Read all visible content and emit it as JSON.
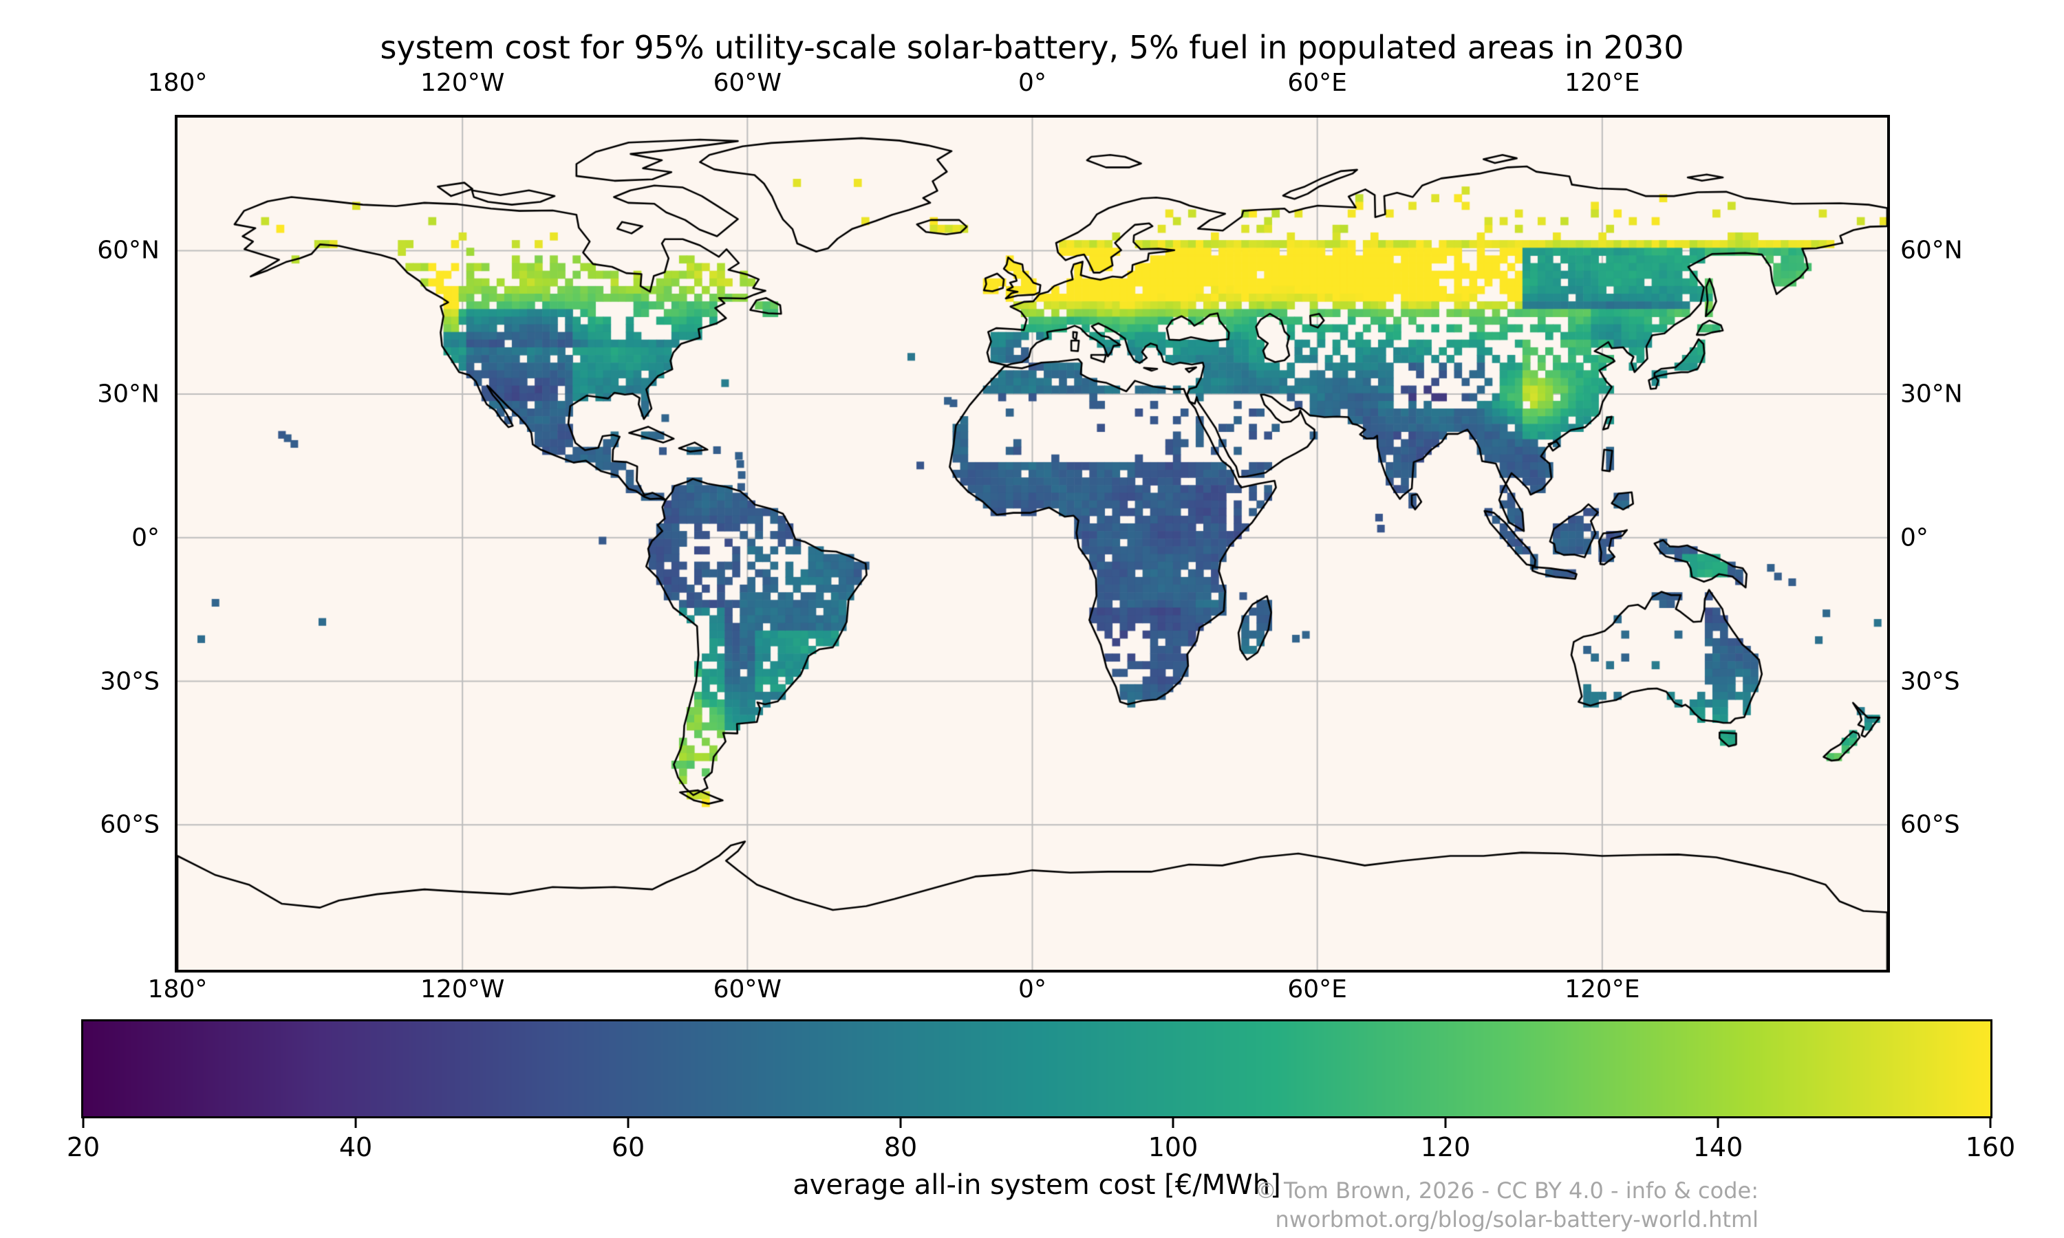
{
  "title": "system cost for 95% utility-scale solar-battery, 5% fuel in populated areas in 2030",
  "map": {
    "projection": "PlateCarree (equirectangular)",
    "extent": {
      "lon_min": -180,
      "lon_max": 180,
      "lat_min": -90,
      "lat_max": 87.8
    },
    "background_color": "#fdf6f0",
    "grid_color": "#bdbdbd",
    "coastline_color": "#000000",
    "no_data_meaning": "white cells = unpopulated areas (no data)",
    "lon_ticks": [
      {
        "label": "180°",
        "lon": -180
      },
      {
        "label": "120°W",
        "lon": -120
      },
      {
        "label": "60°W",
        "lon": -60
      },
      {
        "label": "0°",
        "lon": 0
      },
      {
        "label": "60°E",
        "lon": 60
      },
      {
        "label": "120°E",
        "lon": 120
      }
    ],
    "lat_ticks": [
      {
        "label": "60°N",
        "lat": 60
      },
      {
        "label": "30°N",
        "lat": 30
      },
      {
        "label": "0°",
        "lat": 0
      },
      {
        "label": "30°S",
        "lat": -30
      },
      {
        "label": "60°S",
        "lat": -60
      }
    ]
  },
  "colorbar": {
    "label": "average all-in system cost [€/MWh]",
    "min": 20,
    "max": 160,
    "ticks": [
      20,
      40,
      60,
      80,
      100,
      120,
      140,
      160
    ],
    "colormap": "viridis"
  },
  "attribution": {
    "line1": "© Tom Brown, 2026 - CC BY 4.0 - info & code:",
    "line2": "nworbmot.org/blog/solar-battery-world.html",
    "color": "#a6a6a6"
  },
  "chart_data": {
    "type": "heatmap",
    "subtype": "geographic pcolormesh on world map, ~1.6° cells over populated land only",
    "value_units": "€/MWh",
    "value_range": [
      20,
      160
    ],
    "colormap": "viridis",
    "legend_position": "horizontal colorbar below map",
    "grid": "gray graticule every 60° lon / 30° lat",
    "regions": [
      {
        "region": "UK & Ireland",
        "approx_cost": "150-160"
      },
      {
        "region": "Northern/Central Europe & western Russia (49-62°N)",
        "approx_cost": "140-160"
      },
      {
        "region": "Central Europe fringe (45-49°N)",
        "approx_cost": "105-140"
      },
      {
        "region": "Mediterranean Europe, Balkans & Turkey",
        "approx_cost": "75-105"
      },
      {
        "region": "Iberia interior",
        "approx_cost": "75-95"
      },
      {
        "region": "North Africa coast & Middle East",
        "approx_cost": "55-75"
      },
      {
        "region": "Sahara, Arabian, Taklamakan & central-Australian deserts",
        "approx_cost": "no data; isolated cells 55-65"
      },
      {
        "region": "Tropical Africa & Sahel",
        "approx_cost": "50-65"
      },
      {
        "region": "Southern Africa & Madagascar",
        "approx_cost": "55-75"
      },
      {
        "region": "India",
        "approx_cost": "60-75"
      },
      {
        "region": "Southeast Asia & Indonesia",
        "approx_cost": "55-75"
      },
      {
        "region": "Sichuan basin (China), local maximum",
        "approx_cost": "120-145"
      },
      {
        "region": "Eastern China",
        "approx_cost": "90-120"
      },
      {
        "region": "Japan & Korea",
        "approx_cost": "85-105"
      },
      {
        "region": "Eastern Siberia (48-62°N)",
        "approx_cost": "70-95 patchy"
      },
      {
        "region": "High Arctic settlements (>62°N)",
        "approx_cost": "140-160 sparse cells"
      },
      {
        "region": "US Northeast, Great Lakes & southern Canada",
        "approx_cost": "95-130"
      },
      {
        "region": "US Southeast",
        "approx_cost": "80-100"
      },
      {
        "region": "US Southwest, Great Plains & Mexico",
        "approx_cost": "55-70"
      },
      {
        "region": "Pacific Northwest coast",
        "approx_cost": "130-160"
      },
      {
        "region": "Central America & Caribbean islands",
        "approx_cost": "55-70"
      },
      {
        "region": "Amazon basin",
        "approx_cost": "60-75 patchy"
      },
      {
        "region": "Brazil east/interior",
        "approx_cost": "70-90"
      },
      {
        "region": "SE Brazil",
        "approx_cost": "95-115"
      },
      {
        "region": "Andes & central Chile",
        "approx_cost": "95-125"
      },
      {
        "region": "Patagonia & Tierra del Fuego",
        "approx_cost": "120-160 sparse"
      },
      {
        "region": "Australian coasts",
        "approx_cost": "75-95"
      },
      {
        "region": "Tasmania & New Zealand",
        "approx_cost": "90-115"
      },
      {
        "region": "Greenland, Iceland coast, Arctic islands",
        "approx_cost": "mostly no data; few cells ~150-160"
      }
    ]
  }
}
